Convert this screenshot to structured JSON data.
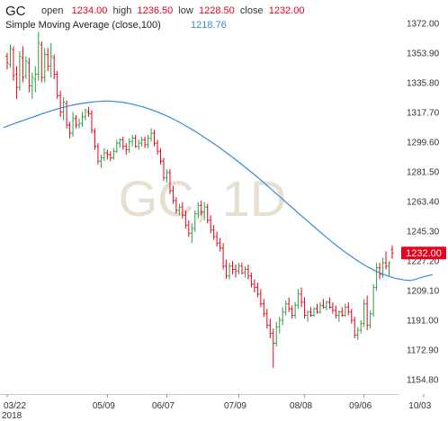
{
  "header": {
    "symbol": "GC",
    "open_label": "open",
    "open_value": "1234.00",
    "high_label": "high",
    "high_value": "1236.50",
    "low_label": "low",
    "low_value": "1228.50",
    "close_label": "close",
    "close_value": "1232.00",
    "sma_label": "Simple Moving Average (close,100)",
    "sma_value": "1218.76"
  },
  "watermark": "GC, 1D",
  "last_price_label": "1232.00",
  "colors": {
    "up": "#2a9d3a",
    "down": "#e8001c",
    "neutral": "#111111",
    "sma": "#3a89d8",
    "price_box": "#e8001c"
  },
  "chart_data": {
    "type": "ohlc",
    "ylim": [
      1150,
      1378
    ],
    "y_ticks": [
      1372.0,
      1353.9,
      1335.8,
      1317.7,
      1299.6,
      1281.5,
      1263.4,
      1245.3,
      1227.2,
      1209.1,
      1191.0,
      1172.9,
      1154.8
    ],
    "y_tick_labels": [
      "1372.00",
      "1353.90",
      "1335.80",
      "1317.70",
      "1299.60",
      "1281.50",
      "1263.40",
      "1245.30",
      "1227.20",
      "1209.10",
      "1191.00",
      "1172.90",
      "1154.80"
    ],
    "x_ticks": [
      {
        "index": 0,
        "label": "03/22",
        "sublabel": "2018"
      },
      {
        "index": 32,
        "label": "05/09"
      },
      {
        "index": 51,
        "label": "06/07"
      },
      {
        "index": 74,
        "label": "07/09"
      },
      {
        "index": 95,
        "label": "08/08"
      },
      {
        "index": 114,
        "label": "09/06"
      },
      {
        "index": 133,
        "label": "10/03"
      }
    ],
    "bars": [
      [
        1352,
        1354,
        1344,
        1348
      ],
      [
        1347,
        1359,
        1345,
        1357
      ],
      [
        1356,
        1358,
        1337,
        1340
      ],
      [
        1341,
        1346,
        1326,
        1333
      ],
      [
        1333,
        1355,
        1331,
        1352
      ],
      [
        1351,
        1358,
        1336,
        1339
      ],
      [
        1340,
        1352,
        1338,
        1349
      ],
      [
        1348,
        1351,
        1330,
        1334
      ],
      [
        1334,
        1342,
        1326,
        1339
      ],
      [
        1338,
        1346,
        1330,
        1341
      ],
      [
        1341,
        1367,
        1337,
        1360
      ],
      [
        1359,
        1361,
        1336,
        1339
      ],
      [
        1339,
        1357,
        1336,
        1353
      ],
      [
        1353,
        1357,
        1343,
        1346
      ],
      [
        1346,
        1360,
        1339,
        1352
      ],
      [
        1351,
        1353,
        1338,
        1341
      ],
      [
        1341,
        1343,
        1326,
        1328
      ],
      [
        1328,
        1331,
        1315,
        1318
      ],
      [
        1318,
        1327,
        1313,
        1324
      ],
      [
        1323,
        1325,
        1308,
        1310
      ],
      [
        1310,
        1312,
        1302,
        1305
      ],
      [
        1305,
        1318,
        1303,
        1314
      ],
      [
        1314,
        1316,
        1308,
        1310
      ],
      [
        1310,
        1314,
        1308,
        1311
      ],
      [
        1311,
        1318,
        1309,
        1315
      ],
      [
        1315,
        1320,
        1313,
        1319
      ],
      [
        1318,
        1321,
        1315,
        1317
      ],
      [
        1317,
        1319,
        1305,
        1307
      ],
      [
        1306,
        1308,
        1295,
        1297
      ],
      [
        1297,
        1299,
        1286,
        1288
      ],
      [
        1288,
        1292,
        1284,
        1290
      ],
      [
        1290,
        1296,
        1288,
        1293
      ],
      [
        1293,
        1295,
        1289,
        1292
      ],
      [
        1292,
        1294,
        1288,
        1290
      ],
      [
        1290,
        1296,
        1289,
        1294
      ],
      [
        1294,
        1301,
        1293,
        1299
      ],
      [
        1299,
        1302,
        1296,
        1301
      ],
      [
        1301,
        1303,
        1295,
        1297
      ],
      [
        1297,
        1299,
        1292,
        1295
      ],
      [
        1295,
        1302,
        1293,
        1300
      ],
      [
        1300,
        1304,
        1297,
        1302
      ],
      [
        1302,
        1304,
        1296,
        1297
      ],
      [
        1297,
        1301,
        1295,
        1299
      ],
      [
        1299,
        1303,
        1297,
        1301
      ],
      [
        1301,
        1303,
        1296,
        1298
      ],
      [
        1298,
        1304,
        1296,
        1302
      ],
      [
        1302,
        1308,
        1300,
        1305
      ],
      [
        1305,
        1307,
        1297,
        1299
      ],
      [
        1299,
        1301,
        1292,
        1294
      ],
      [
        1294,
        1296,
        1286,
        1288
      ],
      [
        1288,
        1290,
        1276,
        1278
      ],
      [
        1278,
        1283,
        1275,
        1281
      ],
      [
        1281,
        1283,
        1268,
        1270
      ],
      [
        1270,
        1273,
        1262,
        1264
      ],
      [
        1264,
        1266,
        1256,
        1258
      ],
      [
        1258,
        1262,
        1255,
        1260
      ],
      [
        1260,
        1263,
        1253,
        1255
      ],
      [
        1255,
        1258,
        1247,
        1249
      ],
      [
        1249,
        1252,
        1242,
        1244
      ],
      [
        1244,
        1250,
        1238,
        1247
      ],
      [
        1247,
        1258,
        1245,
        1256
      ],
      [
        1256,
        1263,
        1253,
        1261
      ],
      [
        1261,
        1264,
        1255,
        1257
      ],
      [
        1257,
        1263,
        1252,
        1260
      ],
      [
        1260,
        1262,
        1250,
        1252
      ],
      [
        1252,
        1255,
        1244,
        1246
      ],
      [
        1246,
        1249,
        1240,
        1242
      ],
      [
        1242,
        1245,
        1236,
        1238
      ],
      [
        1238,
        1241,
        1233,
        1235
      ],
      [
        1235,
        1238,
        1222,
        1224
      ],
      [
        1224,
        1228,
        1216,
        1218
      ],
      [
        1218,
        1226,
        1216,
        1224
      ],
      [
        1224,
        1227,
        1219,
        1222
      ],
      [
        1222,
        1225,
        1217,
        1221
      ],
      [
        1221,
        1226,
        1219,
        1224
      ],
      [
        1224,
        1226,
        1219,
        1220
      ],
      [
        1220,
        1224,
        1217,
        1222
      ],
      [
        1222,
        1225,
        1216,
        1218
      ],
      [
        1218,
        1220,
        1211,
        1213
      ],
      [
        1213,
        1216,
        1208,
        1211
      ],
      [
        1211,
        1214,
        1205,
        1207
      ],
      [
        1207,
        1210,
        1199,
        1201
      ],
      [
        1201,
        1204,
        1193,
        1195
      ],
      [
        1195,
        1198,
        1186,
        1188
      ],
      [
        1188,
        1192,
        1180,
        1183
      ],
      [
        1183,
        1186,
        1162,
        1177
      ],
      [
        1177,
        1190,
        1175,
        1187
      ],
      [
        1187,
        1193,
        1183,
        1191
      ],
      [
        1191,
        1199,
        1188,
        1196
      ],
      [
        1196,
        1203,
        1194,
        1201
      ],
      [
        1201,
        1205,
        1196,
        1198
      ],
      [
        1198,
        1200,
        1192,
        1194
      ],
      [
        1194,
        1202,
        1192,
        1200
      ],
      [
        1200,
        1210,
        1198,
        1207
      ],
      [
        1207,
        1211,
        1199,
        1202
      ],
      [
        1202,
        1205,
        1192,
        1194
      ],
      [
        1194,
        1197,
        1190,
        1196
      ],
      [
        1196,
        1199,
        1193,
        1194
      ],
      [
        1194,
        1199,
        1193,
        1198
      ],
      [
        1198,
        1201,
        1195,
        1196
      ],
      [
        1196,
        1202,
        1195,
        1200
      ],
      [
        1200,
        1204,
        1198,
        1199
      ],
      [
        1199,
        1203,
        1197,
        1202
      ],
      [
        1202,
        1205,
        1198,
        1199
      ],
      [
        1199,
        1202,
        1195,
        1197
      ],
      [
        1197,
        1200,
        1192,
        1194
      ],
      [
        1194,
        1197,
        1190,
        1196
      ],
      [
        1196,
        1199,
        1193,
        1194
      ],
      [
        1194,
        1201,
        1193,
        1199
      ],
      [
        1199,
        1202,
        1194,
        1196
      ],
      [
        1196,
        1198,
        1189,
        1191
      ],
      [
        1191,
        1193,
        1180,
        1182
      ],
      [
        1182,
        1187,
        1179,
        1185
      ],
      [
        1185,
        1191,
        1183,
        1189
      ],
      [
        1189,
        1204,
        1187,
        1201
      ],
      [
        1201,
        1206,
        1185,
        1188
      ],
      [
        1188,
        1197,
        1186,
        1195
      ],
      [
        1195,
        1213,
        1193,
        1211
      ],
      [
        1211,
        1226,
        1209,
        1223
      ],
      [
        1223,
        1226,
        1216,
        1219
      ],
      [
        1219,
        1229,
        1217,
        1226
      ],
      [
        1226,
        1233,
        1222,
        1224
      ],
      [
        1224,
        1227,
        1218,
        1226
      ],
      [
        1234,
        1236.5,
        1228.5,
        1232
      ]
    ],
    "sma": [
      1308.5,
      1309.8,
      1311.0,
      1312.2,
      1313.4,
      1314.6,
      1315.8,
      1317.0,
      1318.1,
      1319.2,
      1320.2,
      1321.1,
      1321.9,
      1322.6,
      1323.2,
      1323.7,
      1324.1,
      1324.4,
      1324.6,
      1324.6,
      1324.4,
      1324.0,
      1323.5,
      1322.8,
      1322.0,
      1321.1,
      1320.0,
      1318.8,
      1317.5,
      1316.0,
      1314.4,
      1312.7,
      1310.9,
      1308.9,
      1306.9,
      1304.8,
      1302.6,
      1300.3,
      1298.0,
      1295.6,
      1293.1,
      1290.6,
      1288.0,
      1285.3,
      1282.6,
      1279.8,
      1277.0,
      1274.0,
      1271.0,
      1268.0,
      1265.0,
      1262.0,
      1259.0,
      1256.0,
      1253.1,
      1250.1,
      1247.2,
      1244.3,
      1241.4,
      1238.6,
      1235.9,
      1233.3,
      1230.8,
      1228.5,
      1226.3,
      1224.2,
      1222.4,
      1220.7,
      1219.2,
      1218.0,
      1216.9,
      1216.1,
      1215.5,
      1215.2,
      1216.0,
      1217.2,
      1218.0,
      1218.8
    ],
    "sma_start_index": 0,
    "sma_step": 1.78
  }
}
